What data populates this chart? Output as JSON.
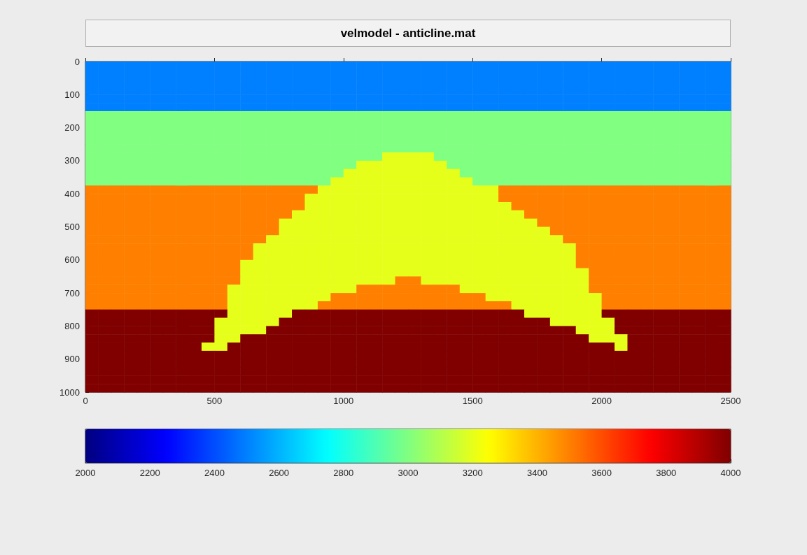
{
  "chart_data": {
    "type": "heatmap",
    "title": "velmodel - anticline.mat",
    "x": [
      25,
      75,
      125,
      175,
      225,
      275,
      325,
      375,
      425,
      475,
      525,
      575,
      625,
      675,
      725,
      775,
      825,
      875,
      925,
      975,
      1025,
      1075,
      1125,
      1175,
      1225,
      1275,
      1325,
      1375,
      1425,
      1475,
      1525,
      1575,
      1625,
      1675,
      1725,
      1775,
      1825,
      1875,
      1925,
      1975,
      2025,
      2075,
      2125,
      2175,
      2225,
      2275,
      2325,
      2375,
      2425,
      2475
    ],
    "y": [
      12.5,
      37.5,
      62.5,
      87.5,
      112.5,
      137.5,
      162.5,
      187.5,
      212.5,
      237.5,
      262.5,
      287.5,
      312.5,
      337.5,
      362.5,
      387.5,
      412.5,
      437.5,
      462.5,
      487.5,
      512.5,
      537.5,
      562.5,
      587.5,
      612.5,
      637.5,
      662.5,
      687.5,
      712.5,
      737.5,
      762.5,
      787.5,
      812.5,
      837.5,
      862.5,
      887.5,
      912.5,
      937.5,
      962.5,
      987.5
    ],
    "xlim": [
      0,
      2500
    ],
    "xticks": [
      0,
      500,
      1000,
      1500,
      2000,
      2500
    ],
    "ylim": [
      1000,
      0
    ],
    "yticks": [
      0,
      100,
      200,
      300,
      400,
      500,
      600,
      700,
      800,
      900,
      1000
    ],
    "clim": [
      2000,
      4000
    ],
    "cticks": [
      2000,
      2200,
      2400,
      2600,
      2800,
      3000,
      3200,
      3400,
      3600,
      3800,
      4000
    ],
    "cells": [
      [
        2500,
        2500,
        2500,
        2500,
        2500,
        2500,
        2500,
        2500,
        2500,
        2500,
        2500,
        2500,
        2500,
        2500,
        2500,
        2500,
        2500,
        2500,
        2500,
        2500,
        2500,
        2500,
        2500,
        2500,
        2500,
        2500,
        2500,
        2500,
        2500,
        2500,
        2500,
        2500,
        2500,
        2500,
        2500,
        2500,
        2500,
        2500,
        2500,
        2500,
        2500,
        2500,
        2500,
        2500,
        2500,
        2500,
        2500,
        2500,
        2500,
        2500
      ],
      [
        2500,
        2500,
        2500,
        2500,
        2500,
        2500,
        2500,
        2500,
        2500,
        2500,
        2500,
        2500,
        2500,
        2500,
        2500,
        2500,
        2500,
        2500,
        2500,
        2500,
        2500,
        2500,
        2500,
        2500,
        2500,
        2500,
        2500,
        2500,
        2500,
        2500,
        2500,
        2500,
        2500,
        2500,
        2500,
        2500,
        2500,
        2500,
        2500,
        2500,
        2500,
        2500,
        2500,
        2500,
        2500,
        2500,
        2500,
        2500,
        2500,
        2500
      ],
      [
        2500,
        2500,
        2500,
        2500,
        2500,
        2500,
        2500,
        2500,
        2500,
        2500,
        2500,
        2500,
        2500,
        2500,
        2500,
        2500,
        2500,
        2500,
        2500,
        2500,
        2500,
        2500,
        2500,
        2500,
        2500,
        2500,
        2500,
        2500,
        2500,
        2500,
        2500,
        2500,
        2500,
        2500,
        2500,
        2500,
        2500,
        2500,
        2500,
        2500,
        2500,
        2500,
        2500,
        2500,
        2500,
        2500,
        2500,
        2500,
        2500,
        2500
      ],
      [
        2500,
        2500,
        2500,
        2500,
        2500,
        2500,
        2500,
        2500,
        2500,
        2500,
        2500,
        2500,
        2500,
        2500,
        2500,
        2500,
        2500,
        2500,
        2500,
        2500,
        2500,
        2500,
        2500,
        2500,
        2500,
        2500,
        2500,
        2500,
        2500,
        2500,
        2500,
        2500,
        2500,
        2500,
        2500,
        2500,
        2500,
        2500,
        2500,
        2500,
        2500,
        2500,
        2500,
        2500,
        2500,
        2500,
        2500,
        2500,
        2500,
        2500
      ],
      [
        2500,
        2500,
        2500,
        2500,
        2500,
        2500,
        2500,
        2500,
        2500,
        2500,
        2500,
        2500,
        2500,
        2500,
        2500,
        2500,
        2500,
        2500,
        2500,
        2500,
        2500,
        2500,
        2500,
        2500,
        2500,
        2500,
        2500,
        2500,
        2500,
        2500,
        2500,
        2500,
        2500,
        2500,
        2500,
        2500,
        2500,
        2500,
        2500,
        2500,
        2500,
        2500,
        2500,
        2500,
        2500,
        2500,
        2500,
        2500,
        2500,
        2500
      ],
      [
        2500,
        2500,
        2500,
        2500,
        2500,
        2500,
        2500,
        2500,
        2500,
        2500,
        2500,
        2500,
        2500,
        2500,
        2500,
        2500,
        2500,
        2500,
        2500,
        2500,
        2500,
        2500,
        2500,
        2500,
        2500,
        2500,
        2500,
        2500,
        2500,
        2500,
        2500,
        2500,
        2500,
        2500,
        2500,
        2500,
        2500,
        2500,
        2500,
        2500,
        2500,
        2500,
        2500,
        2500,
        2500,
        2500,
        2500,
        2500,
        2500,
        2500
      ],
      [
        3000,
        3000,
        3000,
        3000,
        3000,
        3000,
        3000,
        3000,
        3000,
        3000,
        3000,
        3000,
        3000,
        3000,
        3000,
        3000,
        3000,
        3000,
        3000,
        3000,
        3000,
        3000,
        3000,
        3000,
        3000,
        3000,
        3000,
        3000,
        3000,
        3000,
        3000,
        3000,
        3000,
        3000,
        3000,
        3000,
        3000,
        3000,
        3000,
        3000,
        3000,
        3000,
        3000,
        3000,
        3000,
        3000,
        3000,
        3000,
        3000,
        3000
      ],
      [
        3000,
        3000,
        3000,
        3000,
        3000,
        3000,
        3000,
        3000,
        3000,
        3000,
        3000,
        3000,
        3000,
        3000,
        3000,
        3000,
        3000,
        3000,
        3000,
        3000,
        3000,
        3000,
        3000,
        3000,
        3000,
        3000,
        3000,
        3000,
        3000,
        3000,
        3000,
        3000,
        3000,
        3000,
        3000,
        3000,
        3000,
        3000,
        3000,
        3000,
        3000,
        3000,
        3000,
        3000,
        3000,
        3000,
        3000,
        3000,
        3000,
        3000
      ],
      [
        3000,
        3000,
        3000,
        3000,
        3000,
        3000,
        3000,
        3000,
        3000,
        3000,
        3000,
        3000,
        3000,
        3000,
        3000,
        3000,
        3000,
        3000,
        3000,
        3000,
        3000,
        3000,
        3000,
        3000,
        3000,
        3000,
        3000,
        3000,
        3000,
        3000,
        3000,
        3000,
        3000,
        3000,
        3000,
        3000,
        3000,
        3000,
        3000,
        3000,
        3000,
        3000,
        3000,
        3000,
        3000,
        3000,
        3000,
        3000,
        3000,
        3000
      ],
      [
        3000,
        3000,
        3000,
        3000,
        3000,
        3000,
        3000,
        3000,
        3000,
        3000,
        3000,
        3000,
        3000,
        3000,
        3000,
        3000,
        3000,
        3000,
        3000,
        3000,
        3000,
        3000,
        3000,
        3000,
        3000,
        3000,
        3000,
        3000,
        3000,
        3000,
        3000,
        3000,
        3000,
        3000,
        3000,
        3000,
        3000,
        3000,
        3000,
        3000,
        3000,
        3000,
        3000,
        3000,
        3000,
        3000,
        3000,
        3000,
        3000,
        3000
      ],
      [
        3000,
        3000,
        3000,
        3000,
        3000,
        3000,
        3000,
        3000,
        3000,
        3000,
        3000,
        3000,
        3000,
        3000,
        3000,
        3000,
        3000,
        3000,
        3000,
        3000,
        3000,
        3000,
        3000,
        3000,
        3000,
        3000,
        3000,
        3000,
        3000,
        3000,
        3000,
        3000,
        3000,
        3000,
        3000,
        3000,
        3000,
        3000,
        3000,
        3000,
        3000,
        3000,
        3000,
        3000,
        3000,
        3000,
        3000,
        3000,
        3000,
        3000
      ],
      [
        3000,
        3000,
        3000,
        3000,
        3000,
        3000,
        3000,
        3000,
        3000,
        3000,
        3000,
        3000,
        3000,
        3000,
        3000,
        3000,
        3000,
        3000,
        3000,
        3000,
        3000,
        3000,
        3000,
        3200,
        3200,
        3200,
        3200,
        3000,
        3000,
        3000,
        3000,
        3000,
        3000,
        3000,
        3000,
        3000,
        3000,
        3000,
        3000,
        3000,
        3000,
        3000,
        3000,
        3000,
        3000,
        3000,
        3000,
        3000,
        3000,
        3000
      ],
      [
        3000,
        3000,
        3000,
        3000,
        3000,
        3000,
        3000,
        3000,
        3000,
        3000,
        3000,
        3000,
        3000,
        3000,
        3000,
        3000,
        3000,
        3000,
        3000,
        3000,
        3000,
        3200,
        3200,
        3200,
        3200,
        3200,
        3200,
        3200,
        3000,
        3000,
        3000,
        3000,
        3000,
        3000,
        3000,
        3000,
        3000,
        3000,
        3000,
        3000,
        3000,
        3000,
        3000,
        3000,
        3000,
        3000,
        3000,
        3000,
        3000,
        3000
      ],
      [
        3000,
        3000,
        3000,
        3000,
        3000,
        3000,
        3000,
        3000,
        3000,
        3000,
        3000,
        3000,
        3000,
        3000,
        3000,
        3000,
        3000,
        3000,
        3000,
        3000,
        3200,
        3200,
        3200,
        3200,
        3200,
        3200,
        3200,
        3200,
        3200,
        3000,
        3000,
        3000,
        3000,
        3000,
        3000,
        3000,
        3000,
        3000,
        3000,
        3000,
        3000,
        3000,
        3000,
        3000,
        3000,
        3000,
        3000,
        3000,
        3000,
        3000
      ],
      [
        3000,
        3000,
        3000,
        3000,
        3000,
        3000,
        3000,
        3000,
        3000,
        3000,
        3000,
        3000,
        3000,
        3000,
        3000,
        3000,
        3000,
        3000,
        3000,
        3200,
        3200,
        3200,
        3200,
        3200,
        3200,
        3200,
        3200,
        3200,
        3200,
        3200,
        3000,
        3000,
        3000,
        3000,
        3000,
        3000,
        3000,
        3000,
        3000,
        3000,
        3000,
        3000,
        3000,
        3000,
        3000,
        3000,
        3000,
        3000,
        3000,
        3000
      ],
      [
        3500,
        3500,
        3500,
        3500,
        3500,
        3500,
        3500,
        3500,
        3500,
        3500,
        3500,
        3500,
        3500,
        3500,
        3500,
        3500,
        3500,
        3500,
        3200,
        3200,
        3200,
        3200,
        3200,
        3200,
        3200,
        3200,
        3200,
        3200,
        3200,
        3200,
        3200,
        3200,
        3500,
        3500,
        3500,
        3500,
        3500,
        3500,
        3500,
        3500,
        3500,
        3500,
        3500,
        3500,
        3500,
        3500,
        3500,
        3500,
        3500,
        3500
      ],
      [
        3500,
        3500,
        3500,
        3500,
        3500,
        3500,
        3500,
        3500,
        3500,
        3500,
        3500,
        3500,
        3500,
        3500,
        3500,
        3500,
        3500,
        3200,
        3200,
        3200,
        3200,
        3200,
        3200,
        3200,
        3200,
        3200,
        3200,
        3200,
        3200,
        3200,
        3200,
        3200,
        3500,
        3500,
        3500,
        3500,
        3500,
        3500,
        3500,
        3500,
        3500,
        3500,
        3500,
        3500,
        3500,
        3500,
        3500,
        3500,
        3500,
        3500
      ],
      [
        3500,
        3500,
        3500,
        3500,
        3500,
        3500,
        3500,
        3500,
        3500,
        3500,
        3500,
        3500,
        3500,
        3500,
        3500,
        3500,
        3500,
        3200,
        3200,
        3200,
        3200,
        3200,
        3200,
        3200,
        3200,
        3200,
        3200,
        3200,
        3200,
        3200,
        3200,
        3200,
        3200,
        3500,
        3500,
        3500,
        3500,
        3500,
        3500,
        3500,
        3500,
        3500,
        3500,
        3500,
        3500,
        3500,
        3500,
        3500,
        3500,
        3500
      ],
      [
        3500,
        3500,
        3500,
        3500,
        3500,
        3500,
        3500,
        3500,
        3500,
        3500,
        3500,
        3500,
        3500,
        3500,
        3500,
        3500,
        3200,
        3200,
        3200,
        3200,
        3200,
        3200,
        3200,
        3200,
        3200,
        3200,
        3200,
        3200,
        3200,
        3200,
        3200,
        3200,
        3200,
        3200,
        3500,
        3500,
        3500,
        3500,
        3500,
        3500,
        3500,
        3500,
        3500,
        3500,
        3500,
        3500,
        3500,
        3500,
        3500,
        3500
      ],
      [
        3500,
        3500,
        3500,
        3500,
        3500,
        3500,
        3500,
        3500,
        3500,
        3500,
        3500,
        3500,
        3500,
        3500,
        3500,
        3200,
        3200,
        3200,
        3200,
        3200,
        3200,
        3200,
        3200,
        3200,
        3200,
        3200,
        3200,
        3200,
        3200,
        3200,
        3200,
        3200,
        3200,
        3200,
        3200,
        3500,
        3500,
        3500,
        3500,
        3500,
        3500,
        3500,
        3500,
        3500,
        3500,
        3500,
        3500,
        3500,
        3500,
        3500
      ],
      [
        3500,
        3500,
        3500,
        3500,
        3500,
        3500,
        3500,
        3500,
        3500,
        3500,
        3500,
        3500,
        3500,
        3500,
        3500,
        3200,
        3200,
        3200,
        3200,
        3200,
        3200,
        3200,
        3200,
        3200,
        3200,
        3200,
        3200,
        3200,
        3200,
        3200,
        3200,
        3200,
        3200,
        3200,
        3200,
        3200,
        3500,
        3500,
        3500,
        3500,
        3500,
        3500,
        3500,
        3500,
        3500,
        3500,
        3500,
        3500,
        3500,
        3500
      ],
      [
        3500,
        3500,
        3500,
        3500,
        3500,
        3500,
        3500,
        3500,
        3500,
        3500,
        3500,
        3500,
        3500,
        3500,
        3200,
        3200,
        3200,
        3200,
        3200,
        3200,
        3200,
        3200,
        3200,
        3200,
        3200,
        3200,
        3200,
        3200,
        3200,
        3200,
        3200,
        3200,
        3200,
        3200,
        3200,
        3200,
        3200,
        3500,
        3500,
        3500,
        3500,
        3500,
        3500,
        3500,
        3500,
        3500,
        3500,
        3500,
        3500,
        3500
      ],
      [
        3500,
        3500,
        3500,
        3500,
        3500,
        3500,
        3500,
        3500,
        3500,
        3500,
        3500,
        3500,
        3500,
        3200,
        3200,
        3200,
        3200,
        3200,
        3200,
        3200,
        3200,
        3200,
        3200,
        3200,
        3200,
        3200,
        3200,
        3200,
        3200,
        3200,
        3200,
        3200,
        3200,
        3200,
        3200,
        3200,
        3200,
        3200,
        3500,
        3500,
        3500,
        3500,
        3500,
        3500,
        3500,
        3500,
        3500,
        3500,
        3500,
        3500
      ],
      [
        3500,
        3500,
        3500,
        3500,
        3500,
        3500,
        3500,
        3500,
        3500,
        3500,
        3500,
        3500,
        3500,
        3200,
        3200,
        3200,
        3200,
        3200,
        3200,
        3200,
        3200,
        3200,
        3200,
        3200,
        3200,
        3200,
        3200,
        3200,
        3200,
        3200,
        3200,
        3200,
        3200,
        3200,
        3200,
        3200,
        3200,
        3200,
        3500,
        3500,
        3500,
        3500,
        3500,
        3500,
        3500,
        3500,
        3500,
        3500,
        3500,
        3500
      ],
      [
        3500,
        3500,
        3500,
        3500,
        3500,
        3500,
        3500,
        3500,
        3500,
        3500,
        3500,
        3500,
        3200,
        3200,
        3200,
        3200,
        3200,
        3200,
        3200,
        3200,
        3200,
        3200,
        3200,
        3200,
        3200,
        3200,
        3200,
        3200,
        3200,
        3200,
        3200,
        3200,
        3200,
        3200,
        3200,
        3200,
        3200,
        3200,
        3500,
        3500,
        3500,
        3500,
        3500,
        3500,
        3500,
        3500,
        3500,
        3500,
        3500,
        3500
      ],
      [
        3500,
        3500,
        3500,
        3500,
        3500,
        3500,
        3500,
        3500,
        3500,
        3500,
        3500,
        3500,
        3200,
        3200,
        3200,
        3200,
        3200,
        3200,
        3200,
        3200,
        3200,
        3200,
        3200,
        3200,
        3200,
        3200,
        3200,
        3200,
        3200,
        3200,
        3200,
        3200,
        3200,
        3200,
        3200,
        3200,
        3200,
        3200,
        3200,
        3500,
        3500,
        3500,
        3500,
        3500,
        3500,
        3500,
        3500,
        3500,
        3500,
        3500
      ],
      [
        3500,
        3500,
        3500,
        3500,
        3500,
        3500,
        3500,
        3500,
        3500,
        3500,
        3500,
        3500,
        3200,
        3200,
        3200,
        3200,
        3200,
        3200,
        3200,
        3200,
        3200,
        3200,
        3200,
        3200,
        3500,
        3500,
        3200,
        3200,
        3200,
        3200,
        3200,
        3200,
        3200,
        3200,
        3200,
        3200,
        3200,
        3200,
        3200,
        3500,
        3500,
        3500,
        3500,
        3500,
        3500,
        3500,
        3500,
        3500,
        3500,
        3500
      ],
      [
        3500,
        3500,
        3500,
        3500,
        3500,
        3500,
        3500,
        3500,
        3500,
        3500,
        3500,
        3200,
        3200,
        3200,
        3200,
        3200,
        3200,
        3200,
        3200,
        3200,
        3200,
        3500,
        3500,
        3500,
        3500,
        3500,
        3500,
        3500,
        3500,
        3200,
        3200,
        3200,
        3200,
        3200,
        3200,
        3200,
        3200,
        3200,
        3200,
        3500,
        3500,
        3500,
        3500,
        3500,
        3500,
        3500,
        3500,
        3500,
        3500,
        3500
      ],
      [
        3500,
        3500,
        3500,
        3500,
        3500,
        3500,
        3500,
        3500,
        3500,
        3500,
        3500,
        3200,
        3200,
        3200,
        3200,
        3200,
        3200,
        3200,
        3200,
        3500,
        3500,
        3500,
        3500,
        3500,
        3500,
        3500,
        3500,
        3500,
        3500,
        3500,
        3500,
        3200,
        3200,
        3200,
        3200,
        3200,
        3200,
        3200,
        3200,
        3200,
        3500,
        3500,
        3500,
        3500,
        3500,
        3500,
        3500,
        3500,
        3500,
        3500
      ],
      [
        3500,
        3500,
        3500,
        3500,
        3500,
        3500,
        3500,
        3500,
        3500,
        3500,
        3500,
        3200,
        3200,
        3200,
        3200,
        3200,
        3200,
        3200,
        3500,
        3500,
        3500,
        3500,
        3500,
        3500,
        3500,
        3500,
        3500,
        3500,
        3500,
        3500,
        3500,
        3500,
        3500,
        3200,
        3200,
        3200,
        3200,
        3200,
        3200,
        3200,
        3500,
        3500,
        3500,
        3500,
        3500,
        3500,
        3500,
        3500,
        3500,
        3500
      ],
      [
        4000,
        4000,
        4000,
        4000,
        4000,
        4000,
        4000,
        4000,
        4000,
        4000,
        4000,
        3200,
        3200,
        3200,
        3200,
        3200,
        4000,
        4000,
        4000,
        4000,
        4000,
        4000,
        4000,
        4000,
        4000,
        4000,
        4000,
        4000,
        4000,
        4000,
        4000,
        4000,
        4000,
        4000,
        3200,
        3200,
        3200,
        3200,
        3200,
        3200,
        4000,
        4000,
        4000,
        4000,
        4000,
        4000,
        4000,
        4000,
        4000,
        4000
      ],
      [
        4000,
        4000,
        4000,
        4000,
        4000,
        4000,
        4000,
        4000,
        4000,
        4000,
        3200,
        3200,
        3200,
        3200,
        3200,
        4000,
        4000,
        4000,
        4000,
        4000,
        4000,
        4000,
        4000,
        4000,
        4000,
        4000,
        4000,
        4000,
        4000,
        4000,
        4000,
        4000,
        4000,
        4000,
        4000,
        4000,
        3200,
        3200,
        3200,
        3200,
        3200,
        4000,
        4000,
        4000,
        4000,
        4000,
        4000,
        4000,
        4000,
        4000
      ],
      [
        4000,
        4000,
        4000,
        4000,
        4000,
        4000,
        4000,
        4000,
        4000,
        4000,
        3200,
        3200,
        3200,
        3200,
        4000,
        4000,
        4000,
        4000,
        4000,
        4000,
        4000,
        4000,
        4000,
        4000,
        4000,
        4000,
        4000,
        4000,
        4000,
        4000,
        4000,
        4000,
        4000,
        4000,
        4000,
        4000,
        4000,
        4000,
        3200,
        3200,
        3200,
        4000,
        4000,
        4000,
        4000,
        4000,
        4000,
        4000,
        4000,
        4000
      ],
      [
        4000,
        4000,
        4000,
        4000,
        4000,
        4000,
        4000,
        4000,
        4000,
        4000,
        3200,
        3200,
        4000,
        4000,
        4000,
        4000,
        4000,
        4000,
        4000,
        4000,
        4000,
        4000,
        4000,
        4000,
        4000,
        4000,
        4000,
        4000,
        4000,
        4000,
        4000,
        4000,
        4000,
        4000,
        4000,
        4000,
        4000,
        4000,
        4000,
        3200,
        3200,
        3200,
        4000,
        4000,
        4000,
        4000,
        4000,
        4000,
        4000,
        4000
      ],
      [
        4000,
        4000,
        4000,
        4000,
        4000,
        4000,
        4000,
        4000,
        4000,
        3200,
        3200,
        4000,
        4000,
        4000,
        4000,
        4000,
        4000,
        4000,
        4000,
        4000,
        4000,
        4000,
        4000,
        4000,
        4000,
        4000,
        4000,
        4000,
        4000,
        4000,
        4000,
        4000,
        4000,
        4000,
        4000,
        4000,
        4000,
        4000,
        4000,
        4000,
        4000,
        3200,
        4000,
        4000,
        4000,
        4000,
        4000,
        4000,
        4000,
        4000
      ],
      [
        4000,
        4000,
        4000,
        4000,
        4000,
        4000,
        4000,
        4000,
        4000,
        4000,
        4000,
        4000,
        4000,
        4000,
        4000,
        4000,
        4000,
        4000,
        4000,
        4000,
        4000,
        4000,
        4000,
        4000,
        4000,
        4000,
        4000,
        4000,
        4000,
        4000,
        4000,
        4000,
        4000,
        4000,
        4000,
        4000,
        4000,
        4000,
        4000,
        4000,
        4000,
        4000,
        4000,
        4000,
        4000,
        4000,
        4000,
        4000,
        4000,
        4000
      ],
      [
        4000,
        4000,
        4000,
        4000,
        4000,
        4000,
        4000,
        4000,
        4000,
        4000,
        4000,
        4000,
        4000,
        4000,
        4000,
        4000,
        4000,
        4000,
        4000,
        4000,
        4000,
        4000,
        4000,
        4000,
        4000,
        4000,
        4000,
        4000,
        4000,
        4000,
        4000,
        4000,
        4000,
        4000,
        4000,
        4000,
        4000,
        4000,
        4000,
        4000,
        4000,
        4000,
        4000,
        4000,
        4000,
        4000,
        4000,
        4000,
        4000,
        4000
      ],
      [
        4000,
        4000,
        4000,
        4000,
        4000,
        4000,
        4000,
        4000,
        4000,
        4000,
        4000,
        4000,
        4000,
        4000,
        4000,
        4000,
        4000,
        4000,
        4000,
        4000,
        4000,
        4000,
        4000,
        4000,
        4000,
        4000,
        4000,
        4000,
        4000,
        4000,
        4000,
        4000,
        4000,
        4000,
        4000,
        4000,
        4000,
        4000,
        4000,
        4000,
        4000,
        4000,
        4000,
        4000,
        4000,
        4000,
        4000,
        4000,
        4000,
        4000
      ],
      [
        4000,
        4000,
        4000,
        4000,
        4000,
        4000,
        4000,
        4000,
        4000,
        4000,
        4000,
        4000,
        4000,
        4000,
        4000,
        4000,
        4000,
        4000,
        4000,
        4000,
        4000,
        4000,
        4000,
        4000,
        4000,
        4000,
        4000,
        4000,
        4000,
        4000,
        4000,
        4000,
        4000,
        4000,
        4000,
        4000,
        4000,
        4000,
        4000,
        4000,
        4000,
        4000,
        4000,
        4000,
        4000,
        4000,
        4000,
        4000,
        4000,
        4000
      ],
      [
        4000,
        4000,
        4000,
        4000,
        4000,
        4000,
        4000,
        4000,
        4000,
        4000,
        4000,
        4000,
        4000,
        4000,
        4000,
        4000,
        4000,
        4000,
        4000,
        4000,
        4000,
        4000,
        4000,
        4000,
        4000,
        4000,
        4000,
        4000,
        4000,
        4000,
        4000,
        4000,
        4000,
        4000,
        4000,
        4000,
        4000,
        4000,
        4000,
        4000,
        4000,
        4000,
        4000,
        4000,
        4000,
        4000,
        4000,
        4000,
        4000,
        4000
      ]
    ]
  }
}
